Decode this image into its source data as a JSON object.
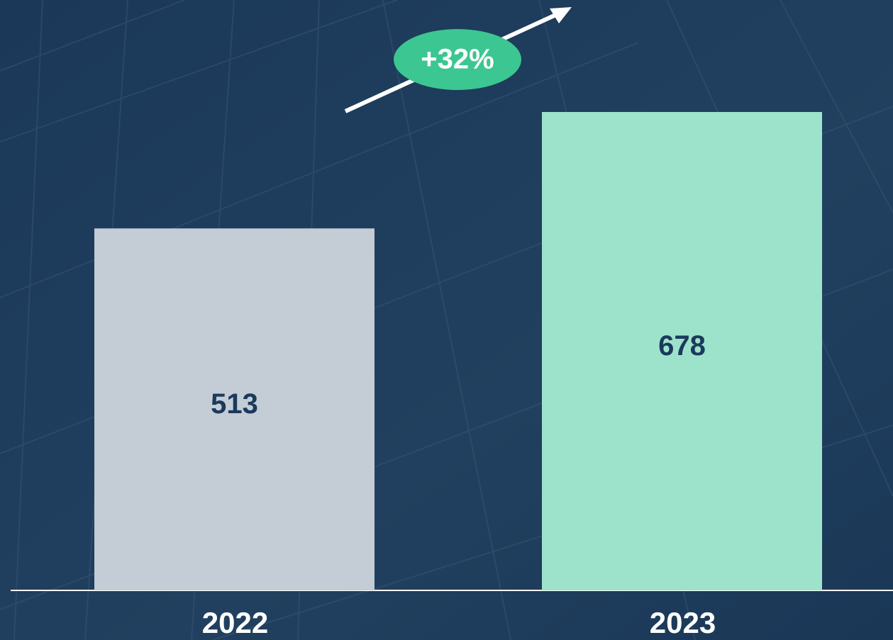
{
  "chart_data": {
    "type": "bar",
    "categories": [
      "2022",
      "2023"
    ],
    "values": [
      513,
      678
    ],
    "colors": [
      "#c4ccd5",
      "#9de3cb"
    ],
    "annotation": "+32%"
  }
}
